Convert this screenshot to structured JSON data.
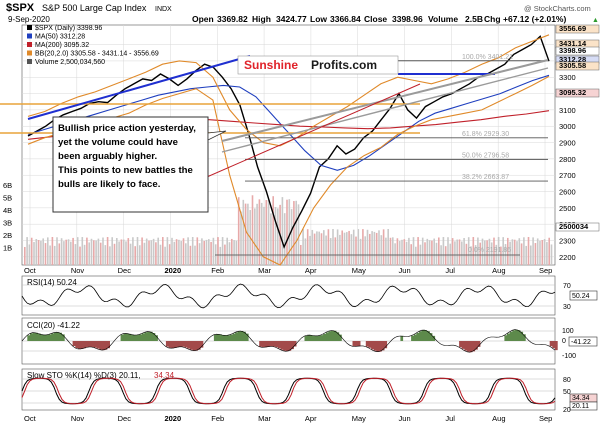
{
  "header": {
    "symbol": "$SPX",
    "name": "S&P 500 Large Cap Index",
    "exchange": "INDX",
    "date": "9-Sep-2020",
    "open_label": "Open",
    "open": "3369.82",
    "high_label": "High",
    "high": "3424.77",
    "low_label": "Low",
    "low": "3366.84",
    "close_label": "Close",
    "close": "3398.96",
    "volume_label": "Volume",
    "volume": "2.5B",
    "chg_label": "Chg",
    "chg": "+67.12 (+2.01%)",
    "watermark": "@ StockCharts.com",
    "up_arrow": "▲"
  },
  "legend": [
    {
      "text": "$SPX (Daily) 3398.96",
      "color": "#000000"
    },
    {
      "text": "MA(50) 3312.28",
      "color": "#1f3fbf"
    },
    {
      "text": "MA(200) 3095.32",
      "color": "#c0202a"
    },
    {
      "text": "BB(20,2.0) 3305.58 - 3431.14 - 3556.69",
      "color": "#e08a2a"
    },
    {
      "text": "Volume 2,500,034,560",
      "color": "#555555"
    }
  ],
  "logo": {
    "part1": "Sunshine",
    "part2": "Profits.com"
  },
  "annotation": {
    "lines": [
      "Bullish price action yesterday,",
      "yet the volume could have",
      "been arguably higher.",
      "This points to new battles the",
      "bulls are likely to face."
    ]
  },
  "fib_labels": [
    {
      "text": "100.0% 3401.21",
      "value": 3401
    },
    {
      "text": "61.8% 2929.30",
      "value": 2929
    },
    {
      "text": "50.0% 2796.58",
      "value": 2797
    },
    {
      "text": "38.2% 2663.87",
      "value": 2664
    }
  ],
  "fib_last": "0.0% 2191.86",
  "price_markers": [
    {
      "text": "3556.69",
      "value": 3556.69,
      "bg": "#fbe3c8"
    },
    {
      "text": "3431.14",
      "value": 3431.14,
      "bg": "#fbe3c8"
    },
    {
      "text": "3398.96",
      "value": 3398.96,
      "bg": "#ffffff"
    },
    {
      "text": "3312.28",
      "value": 3312.28,
      "bg": "#d6dcf5"
    },
    {
      "text": "3305.58",
      "value": 3305.58,
      "bg": "#fbe3c8"
    },
    {
      "text": "3095.32",
      "value": 3095.32,
      "bg": "#f6d3d3"
    },
    {
      "text": "2500034",
      "value": 2500034,
      "bg": "#ffffff"
    }
  ],
  "panels": {
    "rsi": {
      "label": "RSI(14) 50.24",
      "marker": "50.24",
      "ticks": [
        "70",
        "30"
      ]
    },
    "cci": {
      "label": "CCI(20) -41.22",
      "marker": "-41.22",
      "ticks": [
        "100",
        "0",
        "-100"
      ]
    },
    "sto": {
      "label_main": "Slow STO %K(14) %D(3) 20.11,",
      "label_d": "34.34",
      "markers": [
        "34.34",
        "20.11"
      ],
      "ticks": [
        "80",
        "50",
        "20"
      ]
    }
  },
  "chart_data": {
    "type": "line",
    "title": "$SPX S&P 500 Large Cap Index INDX",
    "x_ticks": [
      "Oct",
      "Nov",
      "Dec",
      "2020",
      "Feb",
      "Mar",
      "Apr",
      "May",
      "Jun",
      "Jul",
      "Aug",
      "Sep"
    ],
    "y_ticks": [
      3500,
      3400,
      3300,
      3200,
      3100,
      3000,
      2900,
      2800,
      2700,
      2600,
      2500,
      2400,
      2300,
      2200
    ],
    "volume_ticks": [
      "6B",
      "5B",
      "4B",
      "3B",
      "2B",
      "1B"
    ],
    "ylim": [
      2150,
      3620
    ],
    "series": [
      {
        "name": "$SPX (Daily)",
        "color": "#000000",
        "points": [
          2940,
          2970,
          3000,
          3040,
          3070,
          3090,
          3110,
          3140,
          3150,
          3145,
          3190,
          3230,
          3260,
          3290,
          3280,
          3320,
          3290,
          3250,
          3290,
          3340,
          3380,
          3360,
          3300,
          3230,
          3130,
          2950,
          2750,
          2600,
          2420,
          2260,
          2380,
          2480,
          2590,
          2750,
          2800,
          2880,
          2830,
          2860,
          2930,
          2970,
          3040,
          3110,
          3200,
          3100,
          3050,
          3120,
          3150,
          3180,
          3200,
          3230,
          3260,
          3300,
          3320,
          3350,
          3380,
          3440,
          3470,
          3500,
          3550,
          3398
        ]
      },
      {
        "name": "MA(50)",
        "color": "#1f3fbf",
        "points": [
          2950,
          2980,
          3010,
          3040,
          3070,
          3100,
          3130,
          3160,
          3190,
          3210,
          3230,
          3240,
          3250,
          3240,
          3180,
          3070,
          2960,
          2850,
          2760,
          2730,
          2760,
          2820,
          2890,
          2960,
          3030,
          3080,
          3110,
          3140,
          3170,
          3200,
          3240,
          3280,
          3312
        ]
      },
      {
        "name": "MA(200)",
        "color": "#c0202a",
        "points": [
          2920,
          2935,
          2950,
          2970,
          2990,
          3010,
          3030,
          3040,
          3040,
          3030,
          3020,
          3010,
          3000,
          2995,
          2990,
          2985,
          2990,
          3000,
          3010,
          3025,
          3040,
          3060,
          3075,
          3095
        ]
      },
      {
        "name": "BB upper",
        "color": "#e08a2a",
        "points": [
          3060,
          3090,
          3140,
          3180,
          3210,
          3250,
          3290,
          3330,
          3380,
          3400,
          3390,
          3300,
          3100,
          2980,
          2900,
          2880,
          2930,
          3000,
          3060,
          3120,
          3190,
          3260,
          3300,
          3280,
          3260,
          3290,
          3330,
          3380,
          3420,
          3480,
          3520,
          3560
        ]
      },
      {
        "name": "BB lower",
        "color": "#e08a2a",
        "points": [
          2890,
          2930,
          2960,
          2990,
          3020,
          3050,
          3080,
          3130,
          3170,
          3200,
          3230,
          3160,
          2700,
          2350,
          2200,
          2150,
          2300,
          2500,
          2640,
          2750,
          2820,
          2870,
          2950,
          3000,
          3040,
          3060,
          3080,
          3100,
          3150,
          3200,
          3250,
          3305
        ]
      }
    ],
    "grid": true
  },
  "colors": {
    "grid": "#d8d8d8",
    "up_volume": "#c9c9c9",
    "down_volume": "#e7a9a9",
    "panel_fill_green": "#5d8a4b",
    "panel_fill_red": "#a34a4a"
  }
}
